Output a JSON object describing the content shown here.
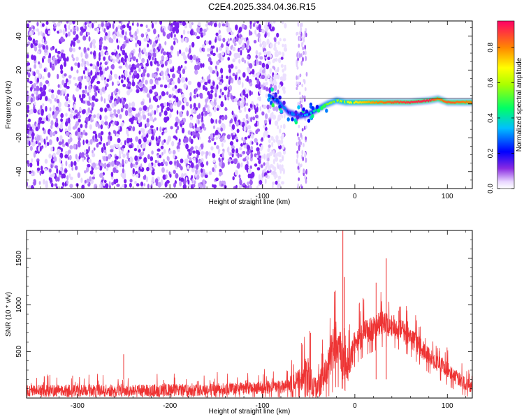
{
  "figure_title": "C2E4.2025.334.04.36.R15",
  "chart_data": [
    {
      "type": "heatmap",
      "xlabel": "Height of straight line (km)",
      "ylabel": "Frequency (Hz)",
      "xlim": [
        -355,
        127
      ],
      "ylim": [
        -50,
        49
      ],
      "xticks": [
        -300,
        -200,
        -100,
        0,
        100
      ],
      "yticks": [
        -40,
        -20,
        0,
        20,
        40
      ],
      "xtick_labels": [
        "-300",
        "-200",
        "-100",
        "0",
        "100"
      ],
      "ytick_labels": [
        "-40",
        "-20",
        "0",
        "20",
        "40"
      ],
      "noise_region_x": [
        -355,
        -75
      ],
      "noise_stripe_x": [
        -63,
        -52
      ],
      "signal_track": {
        "x": [
          -90,
          -80,
          -72,
          -60,
          -50,
          -40,
          -30,
          -20,
          -10,
          0,
          20,
          40,
          60,
          80,
          90,
          100,
          115,
          127
        ],
        "y": [
          4,
          0,
          -5,
          -7,
          -6,
          -3,
          0,
          2,
          1,
          1,
          1,
          1,
          1,
          2,
          3,
          1,
          1,
          1
        ],
        "amplitude": [
          0.35,
          0.3,
          0.3,
          0.3,
          0.35,
          0.45,
          0.55,
          0.6,
          0.65,
          0.7,
          0.78,
          0.85,
          0.9,
          0.92,
          0.8,
          0.85,
          0.82,
          0.8
        ]
      },
      "colorbar": {
        "label": "Normalized spectral amplitude",
        "range": [
          0,
          0.95
        ],
        "ticks": [
          0.0,
          0.2,
          0.4,
          0.6,
          0.8
        ],
        "tick_labels": [
          "0.0",
          "0.2",
          "0.4",
          "0.6",
          "0.8"
        ]
      }
    },
    {
      "type": "line",
      "xlabel": "Height of straight line (km)",
      "ylabel": "SNR (10 * v/v)",
      "xlim": [
        -355,
        127
      ],
      "ylim": [
        0,
        1800
      ],
      "xticks": [
        -300,
        -200,
        -100,
        0,
        100
      ],
      "yticks": [
        500,
        1000,
        1500
      ],
      "xtick_labels": [
        "-300",
        "-200",
        "-100",
        "0",
        "100"
      ],
      "ytick_labels": [
        "500",
        "1000",
        "1500"
      ],
      "color": "#ee3333",
      "envelope": {
        "x": [
          -355,
          -250,
          -150,
          -75,
          -60,
          -50,
          -45,
          -38,
          -30,
          -25,
          -20,
          -15,
          -12,
          -8,
          -5,
          0,
          10,
          20,
          30,
          40,
          50,
          60,
          80,
          100,
          115,
          127
        ],
        "base": [
          80,
          80,
          90,
          120,
          200,
          220,
          100,
          150,
          300,
          500,
          550,
          500,
          400,
          300,
          400,
          600,
          700,
          750,
          800,
          780,
          730,
          650,
          450,
          300,
          180,
          120
        ],
        "amp": [
          120,
          120,
          120,
          130,
          200,
          400,
          220,
          250,
          300,
          450,
          420,
          400,
          300,
          250,
          300,
          250,
          250,
          250,
          250,
          230,
          220,
          200,
          180,
          160,
          140,
          120
        ]
      },
      "peaks": [
        {
          "x": -13,
          "y": 1800
        },
        {
          "x": -11,
          "y": 1300
        },
        {
          "x": 34,
          "y": 1500
        },
        {
          "x": -250,
          "y": 470
        },
        {
          "x": -48,
          "y": 700
        },
        {
          "x": 23,
          "y": 1240
        }
      ]
    }
  ]
}
